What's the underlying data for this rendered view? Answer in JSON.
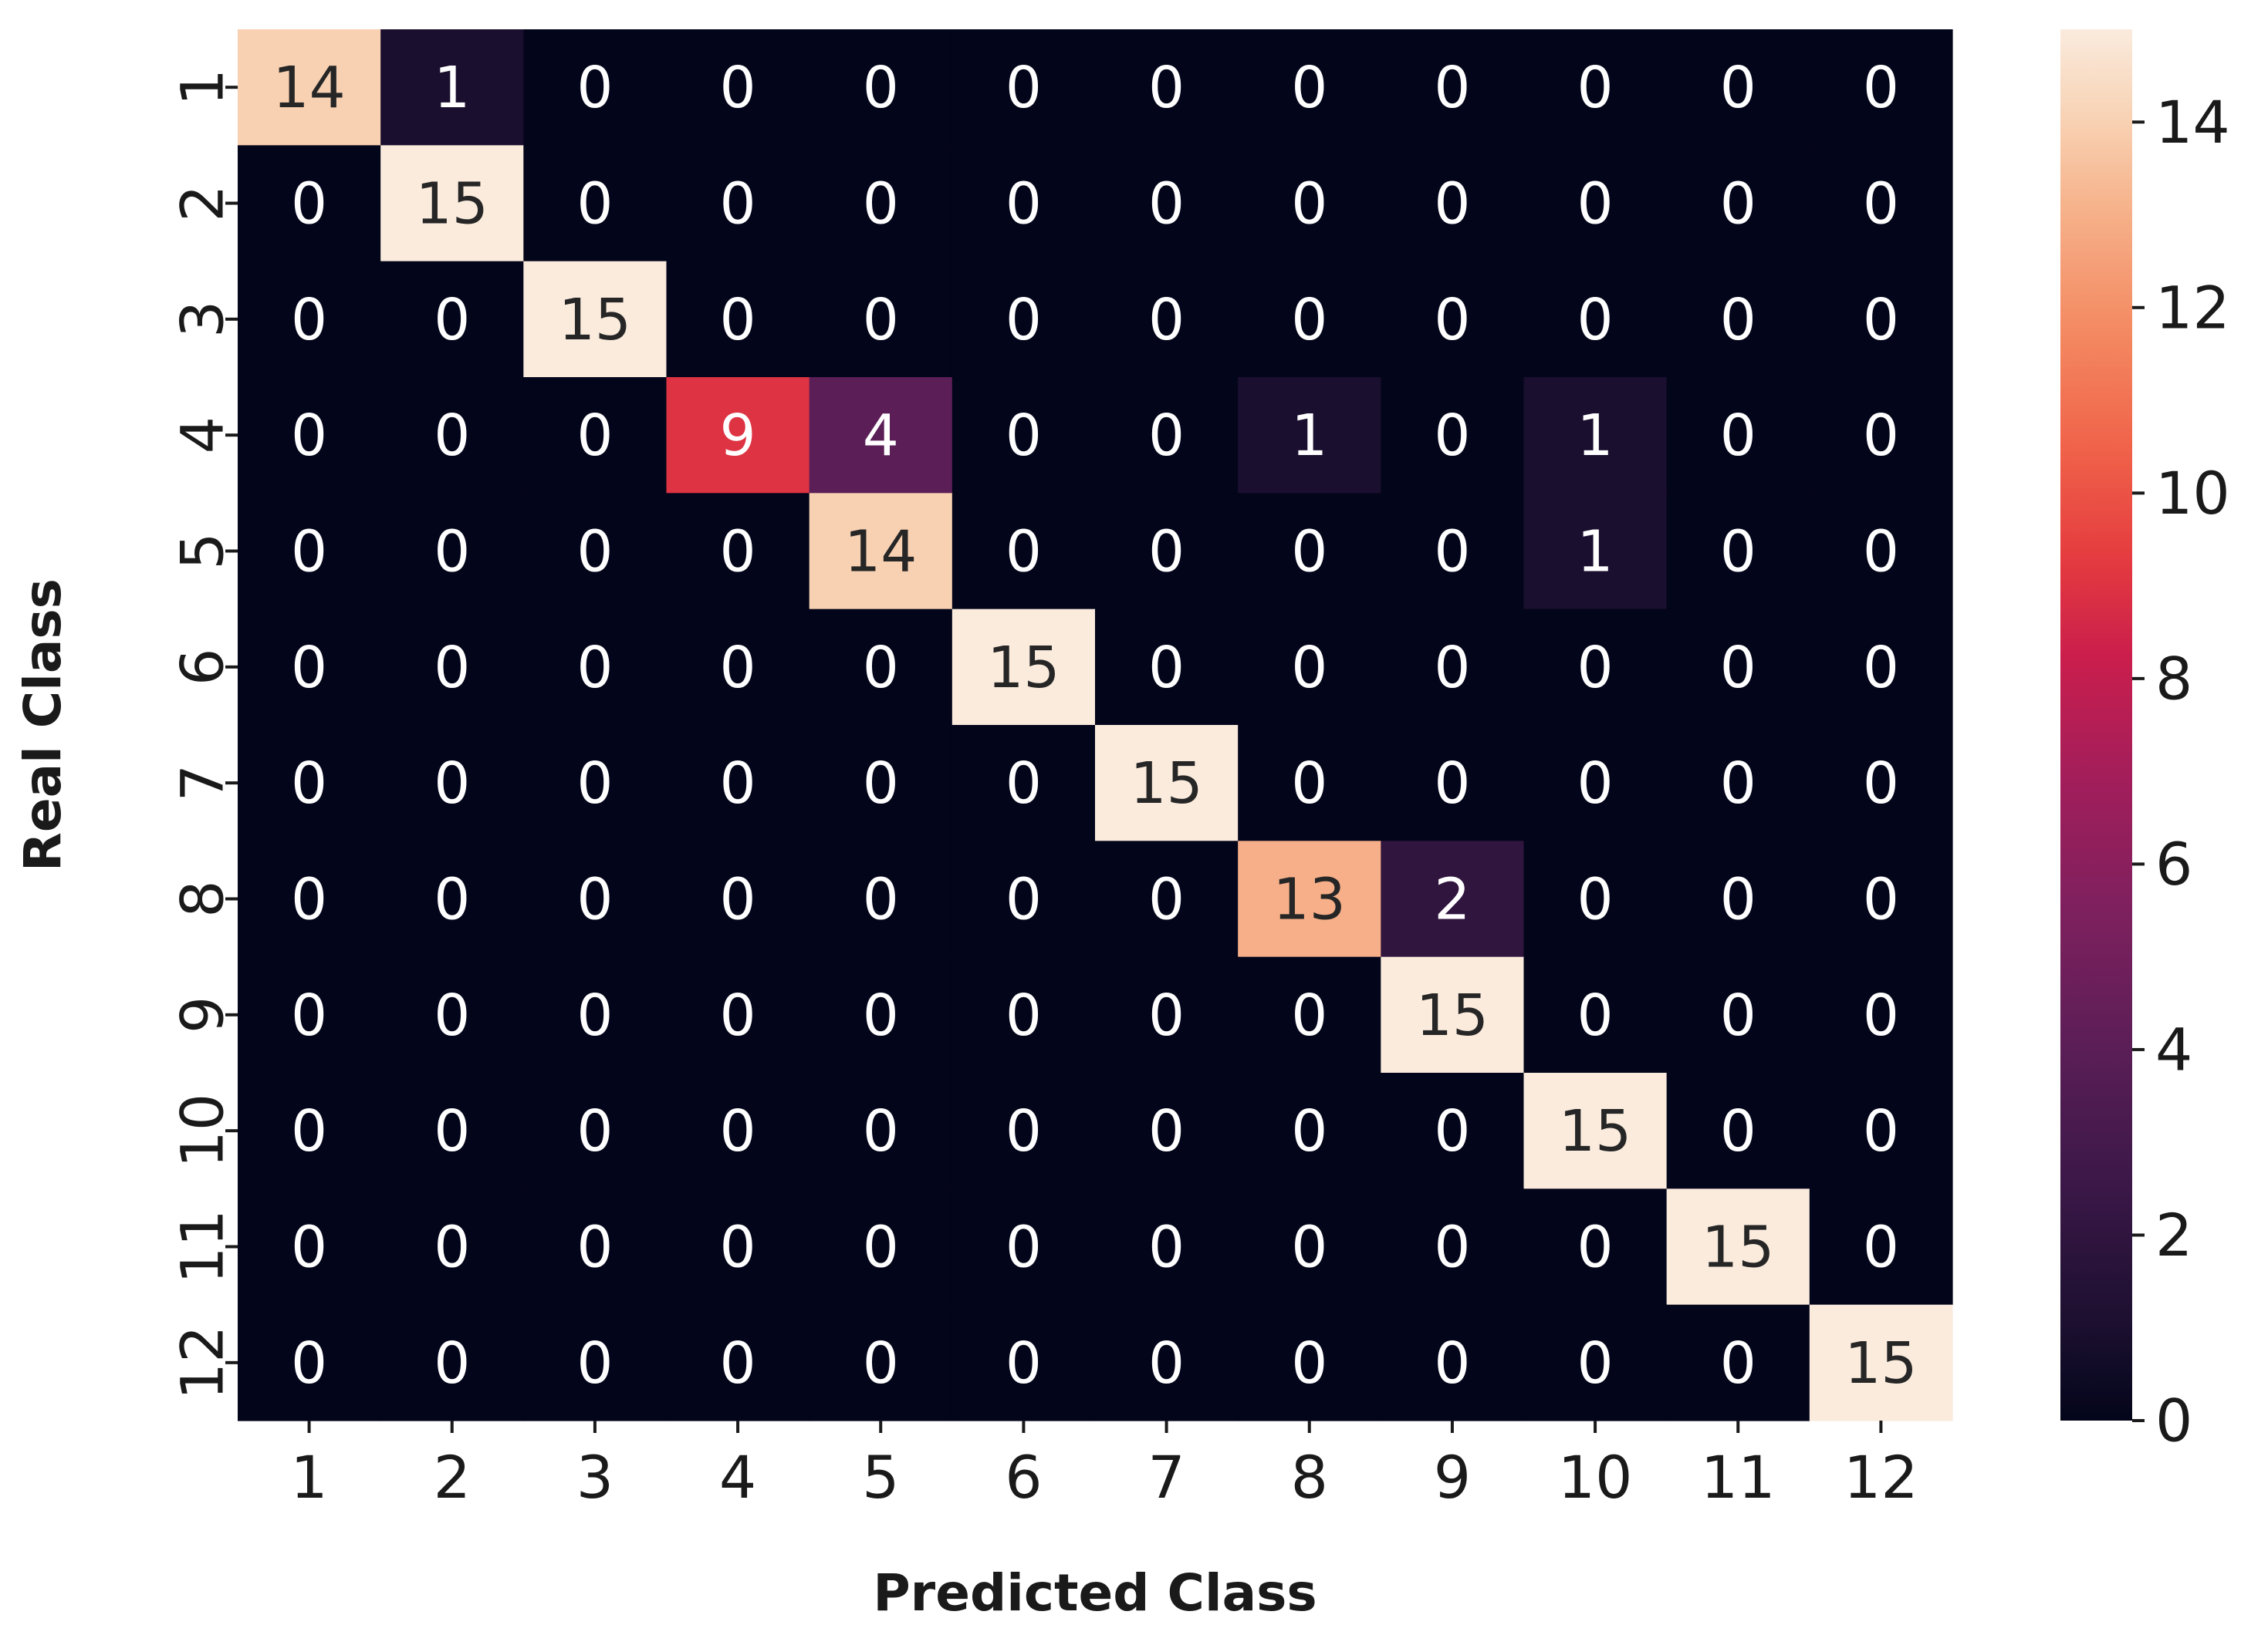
{
  "chart_data": {
    "type": "heatmap",
    "title": "",
    "xlabel": "Predicted Class",
    "ylabel": "Real Class",
    "x_categories": [
      "1",
      "2",
      "3",
      "4",
      "5",
      "6",
      "7",
      "8",
      "9",
      "10",
      "11",
      "12"
    ],
    "y_categories": [
      "1",
      "2",
      "3",
      "4",
      "5",
      "6",
      "7",
      "8",
      "9",
      "10",
      "11",
      "12"
    ],
    "values": [
      [
        14,
        1,
        0,
        0,
        0,
        0,
        0,
        0,
        0,
        0,
        0,
        0
      ],
      [
        0,
        15,
        0,
        0,
        0,
        0,
        0,
        0,
        0,
        0,
        0,
        0
      ],
      [
        0,
        0,
        15,
        0,
        0,
        0,
        0,
        0,
        0,
        0,
        0,
        0
      ],
      [
        0,
        0,
        0,
        9,
        4,
        0,
        0,
        1,
        0,
        1,
        0,
        0
      ],
      [
        0,
        0,
        0,
        0,
        14,
        0,
        0,
        0,
        0,
        1,
        0,
        0
      ],
      [
        0,
        0,
        0,
        0,
        0,
        15,
        0,
        0,
        0,
        0,
        0,
        0
      ],
      [
        0,
        0,
        0,
        0,
        0,
        0,
        15,
        0,
        0,
        0,
        0,
        0
      ],
      [
        0,
        0,
        0,
        0,
        0,
        0,
        0,
        13,
        2,
        0,
        0,
        0
      ],
      [
        0,
        0,
        0,
        0,
        0,
        0,
        0,
        0,
        15,
        0,
        0,
        0
      ],
      [
        0,
        0,
        0,
        0,
        0,
        0,
        0,
        0,
        0,
        15,
        0,
        0
      ],
      [
        0,
        0,
        0,
        0,
        0,
        0,
        0,
        0,
        0,
        0,
        15,
        0
      ],
      [
        0,
        0,
        0,
        0,
        0,
        0,
        0,
        0,
        0,
        0,
        0,
        15
      ]
    ],
    "colorbar": {
      "range": [
        0,
        15
      ],
      "ticks": [
        0,
        2,
        4,
        6,
        8,
        10,
        12,
        14
      ],
      "colormap": "rocket",
      "low_color": "#03051a",
      "high_color": "#faebdd"
    },
    "grid": false,
    "annotated": true
  }
}
